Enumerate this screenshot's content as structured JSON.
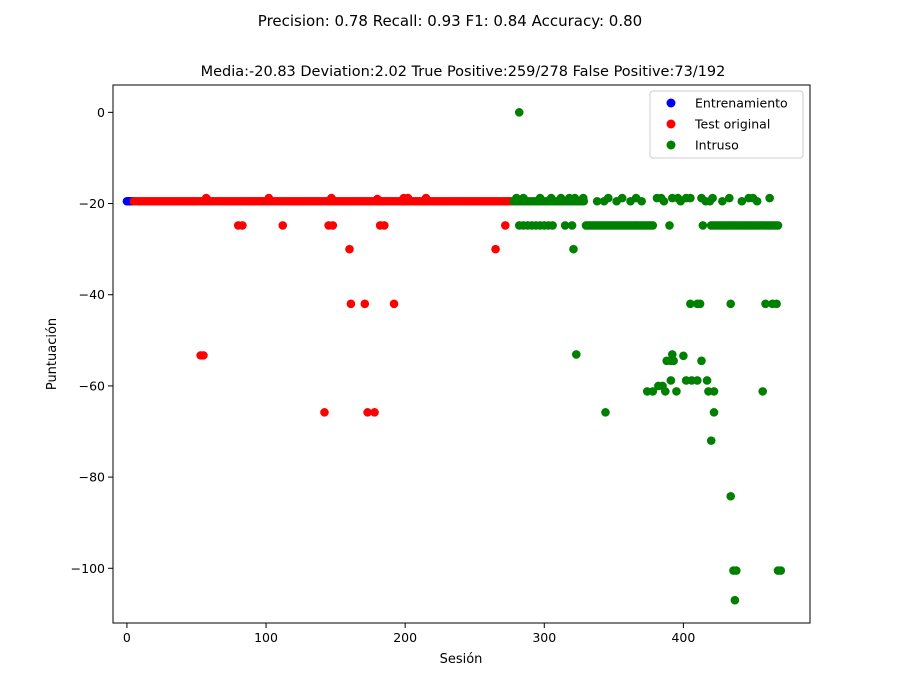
{
  "suptitle": "Precision: 0.78 Recall: 0.93 F1: 0.84 Accuracy: 0.80",
  "chart_data": {
    "type": "scatter",
    "title": "Media:-20.83 Deviation:2.02 True Positive:259/278 False Positive:73/192",
    "xlabel": "Sesión",
    "ylabel": "Puntuación",
    "xlim": [
      -10,
      491
    ],
    "ylim": [
      -112,
      6
    ],
    "xticks": [
      0,
      100,
      200,
      300,
      400
    ],
    "yticks": [
      0,
      -20,
      -40,
      -60,
      -80,
      -100
    ],
    "ytick_labels": [
      "0",
      "−20",
      "−40",
      "−60",
      "−80",
      "−100"
    ],
    "grid": false,
    "legend_position": "upper right",
    "series": [
      {
        "name": "Entrenamiento",
        "color": "#0000ff",
        "dense_runs": [
          {
            "x_start": 0,
            "x_end": 4,
            "step": 1,
            "y": -19.5
          }
        ],
        "points": []
      },
      {
        "name": "Test original",
        "color": "#ff0000",
        "dense_runs": [
          {
            "x_start": 5,
            "x_end": 277,
            "step": 1.5,
            "y": -19.5
          }
        ],
        "points": [
          [
            53,
            -53.3
          ],
          [
            55,
            -53.3
          ],
          [
            57,
            -18.8
          ],
          [
            80,
            -24.8
          ],
          [
            83,
            -24.8
          ],
          [
            102,
            -18.8
          ],
          [
            112,
            -24.8
          ],
          [
            142,
            -65.8
          ],
          [
            145,
            -24.8
          ],
          [
            147,
            -18.8
          ],
          [
            148,
            -24.8
          ],
          [
            160,
            -30
          ],
          [
            161,
            -42
          ],
          [
            171,
            -42
          ],
          [
            173,
            -65.8
          ],
          [
            178,
            -65.8
          ],
          [
            180,
            -19
          ],
          [
            182,
            -24.8
          ],
          [
            185,
            -24.8
          ],
          [
            192,
            -42
          ],
          [
            199,
            -18.8
          ],
          [
            202,
            -18.8
          ],
          [
            215,
            -18.8
          ],
          [
            265,
            -30
          ],
          [
            272,
            -24.8
          ]
        ]
      },
      {
        "name": "Intruso",
        "color": "#008000",
        "dense_runs": [
          {
            "x_start": 278,
            "x_end": 330,
            "step": 1.8,
            "y": -19.5
          },
          {
            "x_start": 282,
            "x_end": 308,
            "step": 3,
            "y": -24.8
          },
          {
            "x_start": 330,
            "x_end": 378,
            "step": 1.5,
            "y": -24.8
          },
          {
            "x_start": 420,
            "x_end": 468,
            "step": 1.6,
            "y": -24.8
          }
        ],
        "points": [
          [
            282,
            0
          ],
          [
            280,
            -18.8
          ],
          [
            285,
            -18.8
          ],
          [
            297,
            -18.8
          ],
          [
            305,
            -18.8
          ],
          [
            312,
            -18.8
          ],
          [
            318,
            -18.8
          ],
          [
            322,
            -18.8
          ],
          [
            328,
            -18.8
          ],
          [
            315,
            -24.8
          ],
          [
            320,
            -24.8
          ],
          [
            321,
            -30
          ],
          [
            323,
            -53.1
          ],
          [
            344,
            -65.8
          ],
          [
            338,
            -19.5
          ],
          [
            343,
            -19.5
          ],
          [
            346,
            -18.8
          ],
          [
            352,
            -19.5
          ],
          [
            356,
            -18.8
          ],
          [
            362,
            -19.5
          ],
          [
            366,
            -18.8
          ],
          [
            370,
            -19.5
          ],
          [
            381,
            -18.8
          ],
          [
            384,
            -18.8
          ],
          [
            386,
            -19.5
          ],
          [
            392,
            -18.8
          ],
          [
            396,
            -18.8
          ],
          [
            398,
            -19.5
          ],
          [
            402,
            -18.8
          ],
          [
            405,
            -18.8
          ],
          [
            413,
            -18.8
          ],
          [
            416,
            -19.5
          ],
          [
            419,
            -19.5
          ],
          [
            421,
            -18.8
          ],
          [
            428,
            -19.5
          ],
          [
            433,
            -18.8
          ],
          [
            442,
            -19.5
          ],
          [
            447,
            -18.8
          ],
          [
            450,
            -18.8
          ],
          [
            453,
            -19.5
          ],
          [
            462,
            -18.8
          ],
          [
            390,
            -24.8
          ],
          [
            414,
            -24.8
          ],
          [
            405,
            -42
          ],
          [
            410,
            -42
          ],
          [
            412,
            -42
          ],
          [
            434,
            -42
          ],
          [
            459,
            -42
          ],
          [
            464,
            -42
          ],
          [
            467,
            -42
          ],
          [
            374,
            -61.2
          ],
          [
            378,
            -61.2
          ],
          [
            382,
            -60
          ],
          [
            385,
            -60
          ],
          [
            387,
            -61.2
          ],
          [
            388,
            -54.5
          ],
          [
            391,
            -54.5
          ],
          [
            392,
            -53.1
          ],
          [
            393,
            -54.5
          ],
          [
            391,
            -58.8
          ],
          [
            395,
            -61.2
          ],
          [
            400,
            -53.4
          ],
          [
            402,
            -58.8
          ],
          [
            406,
            -58.8
          ],
          [
            410,
            -58.8
          ],
          [
            413,
            -54.5
          ],
          [
            417,
            -58.8
          ],
          [
            418,
            -61.2
          ],
          [
            422,
            -61.2
          ],
          [
            422,
            -65.8
          ],
          [
            420,
            -72
          ],
          [
            457,
            -61.2
          ],
          [
            434,
            -84.2
          ],
          [
            436,
            -100.5
          ],
          [
            438,
            -100.5
          ],
          [
            437,
            -107
          ],
          [
            468,
            -100.5
          ],
          [
            470,
            -100.5
          ]
        ]
      }
    ]
  }
}
